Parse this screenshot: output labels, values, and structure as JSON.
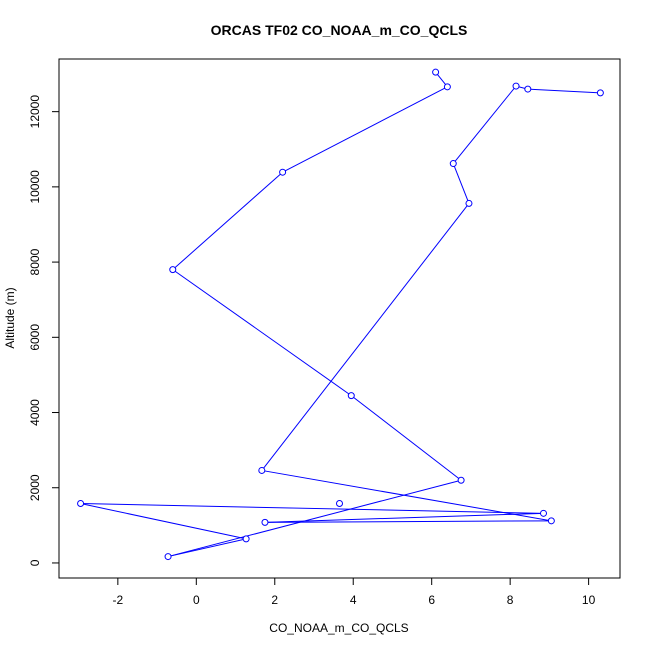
{
  "chart_data": {
    "type": "line",
    "title": "ORCAS TF02 CO_NOAA_m_CO_QCLS",
    "xlabel": "CO_NOAA_m_CO_QCLS",
    "ylabel": "Altitude (m)",
    "xlim": [
      -3.5,
      10.8
    ],
    "ylim": [
      -400,
      13400
    ],
    "xticks": [
      -2,
      0,
      2,
      4,
      6,
      8,
      10
    ],
    "yticks": [
      0,
      2000,
      4000,
      6000,
      8000,
      10000,
      12000
    ],
    "grid": false,
    "series": [
      {
        "color": "#0000ff",
        "marker": "open-circle",
        "points": [
          {
            "x": 10.3,
            "y": 12500
          },
          {
            "x": 8.45,
            "y": 12600
          },
          {
            "x": 8.15,
            "y": 12680
          },
          {
            "x": 6.55,
            "y": 10620
          },
          {
            "x": 6.95,
            "y": 9560
          },
          {
            "x": 1.67,
            "y": 2460
          },
          {
            "x": 9.05,
            "y": 1120
          },
          {
            "x": 1.75,
            "y": 1080
          },
          {
            "x": 8.85,
            "y": 1320
          },
          {
            "x": -2.95,
            "y": 1580
          },
          {
            "x": 1.27,
            "y": 640
          },
          {
            "x": -0.72,
            "y": 170
          },
          {
            "x": 6.75,
            "y": 2200
          },
          {
            "x": 3.95,
            "y": 4450
          },
          {
            "x": -0.6,
            "y": 7800
          },
          {
            "x": 2.2,
            "y": 10390
          },
          {
            "x": 6.4,
            "y": 12660
          },
          {
            "x": 6.1,
            "y": 13050
          }
        ]
      }
    ],
    "extra_points": [
      {
        "x": 3.65,
        "y": 1580
      }
    ]
  }
}
